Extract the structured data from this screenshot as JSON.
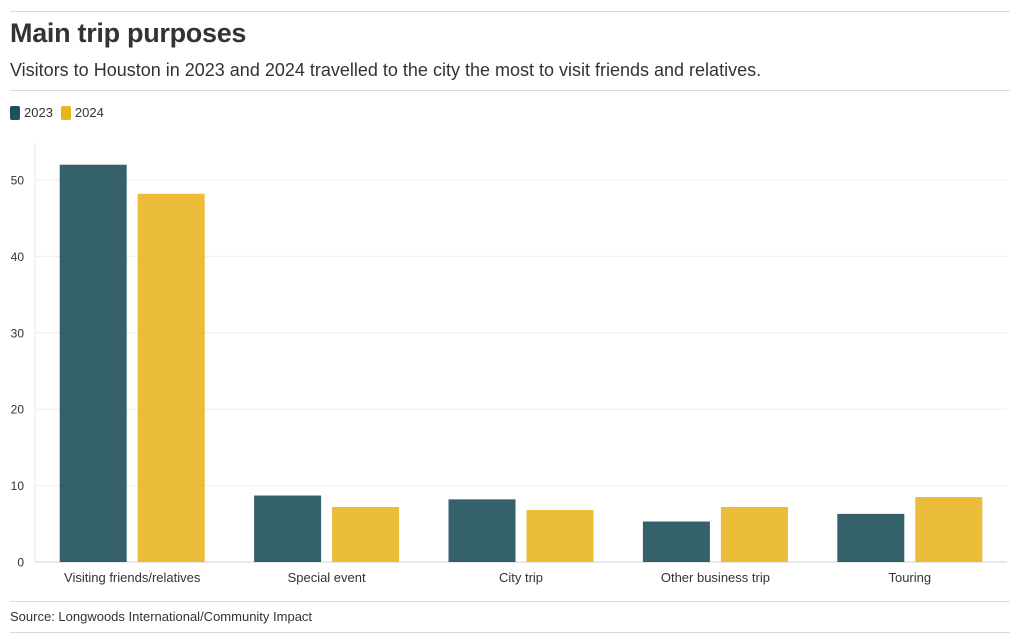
{
  "header": {
    "title": "Main trip purposes",
    "subtitle": "Visitors to Houston in 2023 and 2024 travelled to the city the most to visit friends and relatives."
  },
  "legend": {
    "items": [
      {
        "label": "2023",
        "color": "#1f515a"
      },
      {
        "label": "2024",
        "color": "#e8b521"
      }
    ]
  },
  "chart_data": {
    "type": "bar",
    "title": "Main trip purposes",
    "xlabel": "",
    "ylabel": "",
    "ylim": [
      0,
      55
    ],
    "yticks": [
      0,
      10,
      20,
      30,
      40,
      50
    ],
    "grid": true,
    "legend_position": "top-left",
    "categories": [
      "Visiting friends/relatives",
      "Special event",
      "City trip",
      "Other business trip",
      "Touring"
    ],
    "series": [
      {
        "name": "2023",
        "color": "#1f515a",
        "values": [
          52,
          8.7,
          8.2,
          5.3,
          6.3
        ]
      },
      {
        "name": "2024",
        "color": "#e8b521",
        "values": [
          48.2,
          7.2,
          6.8,
          7.2,
          8.5
        ]
      }
    ]
  },
  "footer": {
    "source": "Source: Longwoods International/Community Impact"
  }
}
